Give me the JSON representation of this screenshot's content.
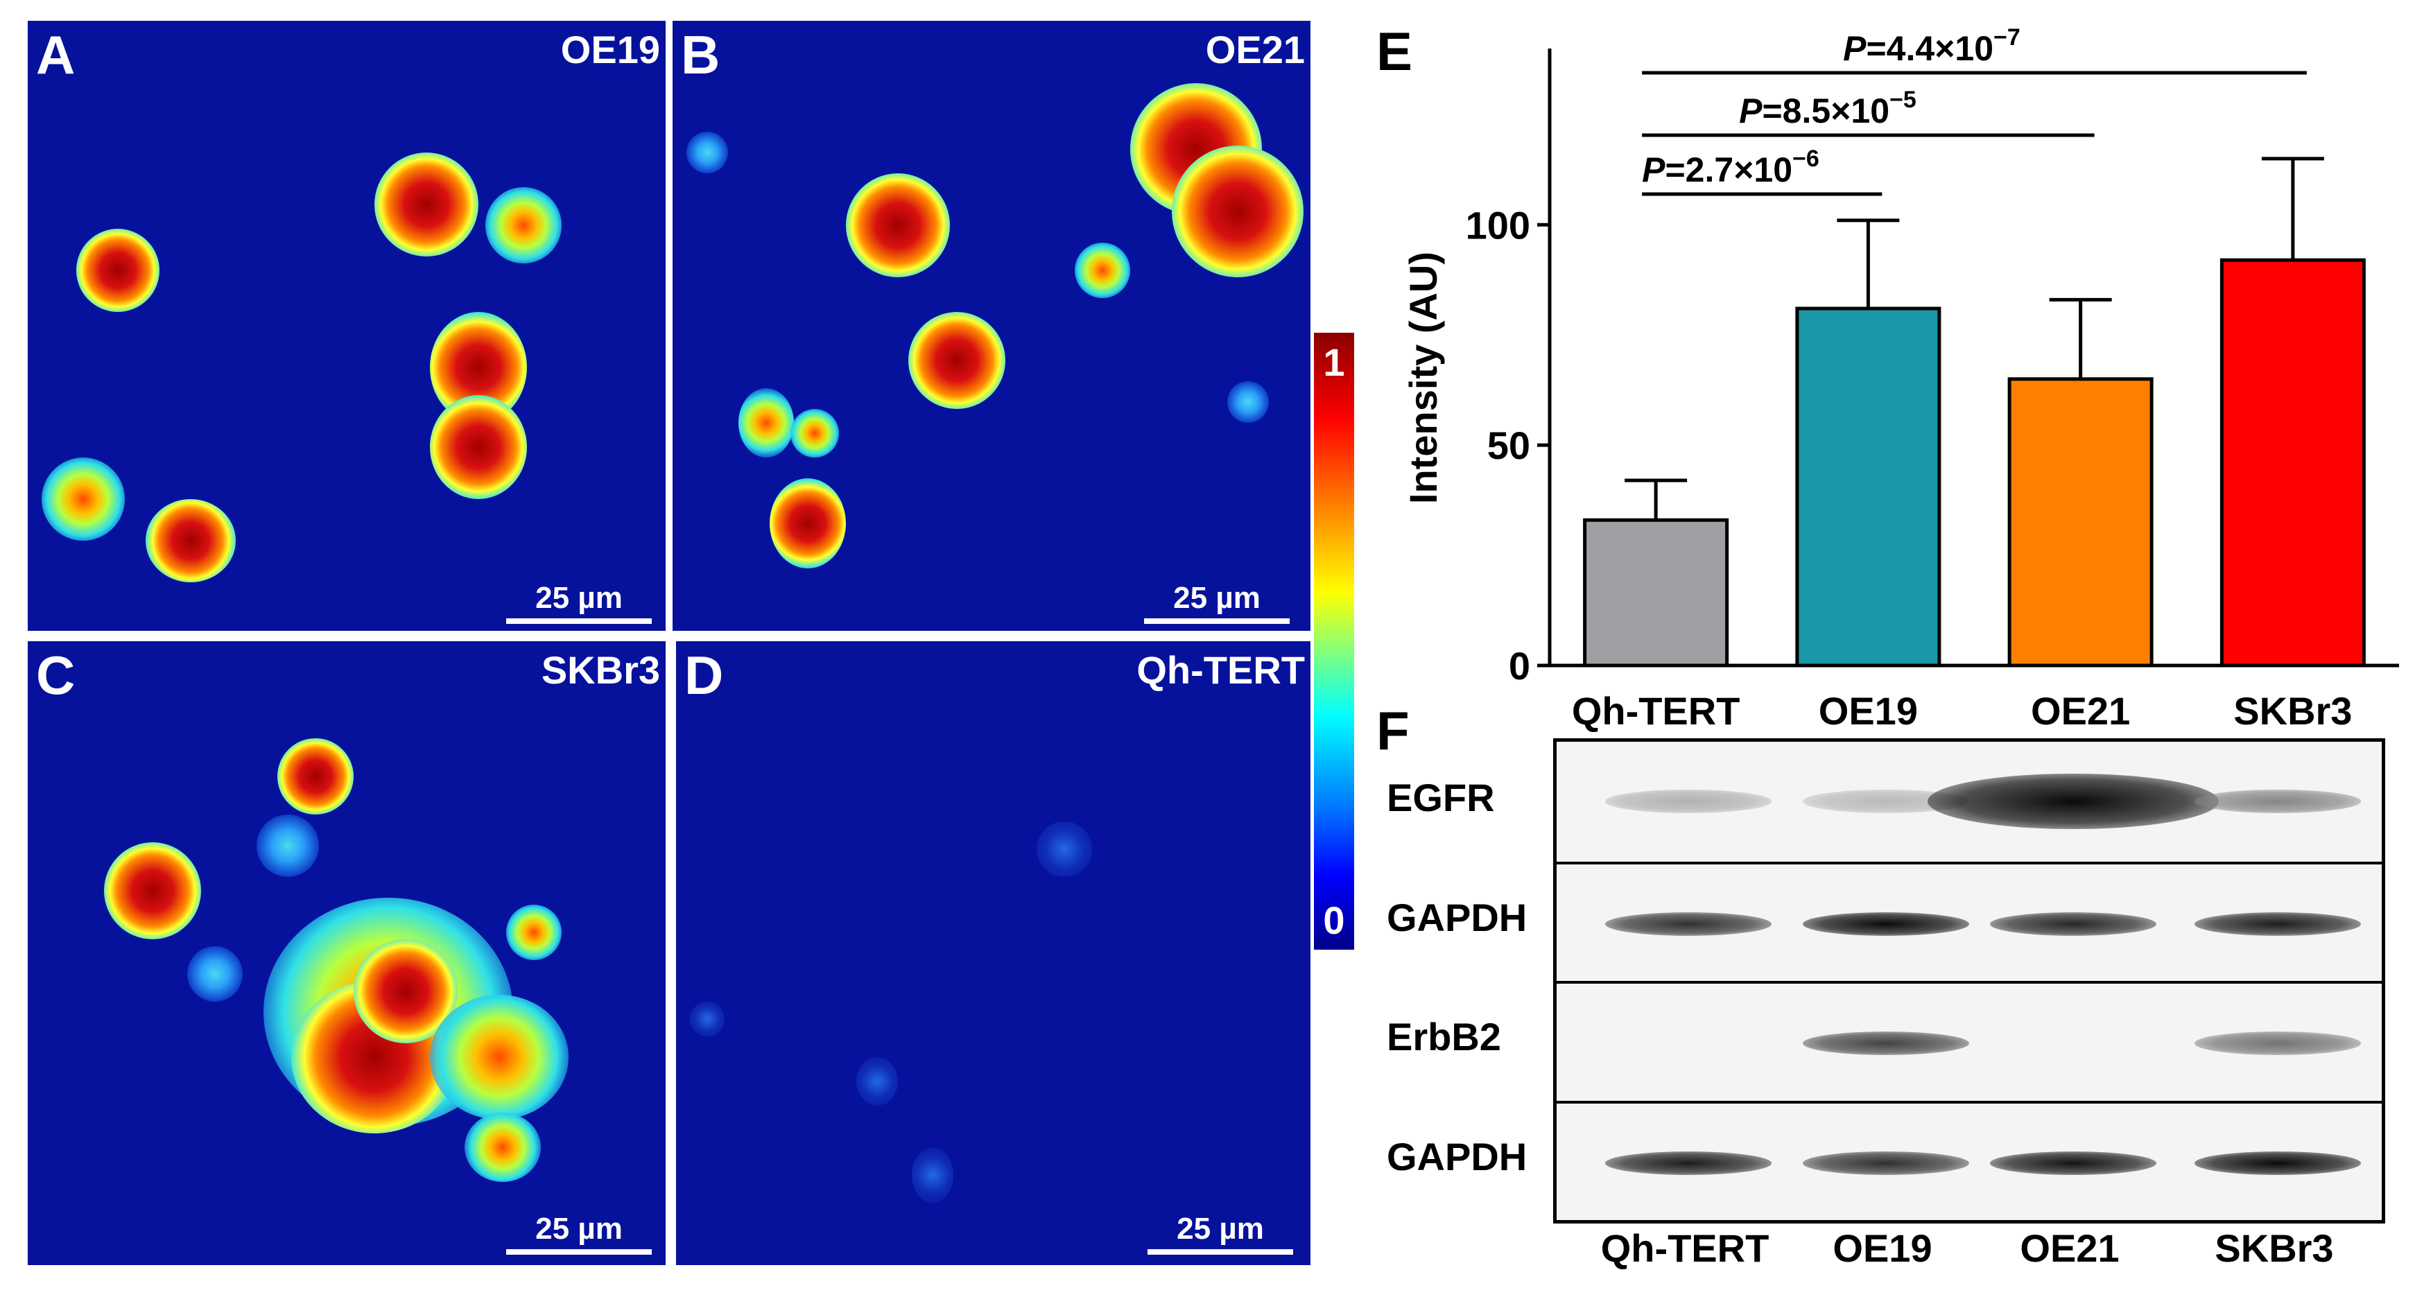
{
  "panels": [
    {
      "id": "A",
      "letter": "A",
      "cell_line": "OE19",
      "scale": "25 µm"
    },
    {
      "id": "B",
      "letter": "B",
      "cell_line": "OE21",
      "scale": "25 µm"
    },
    {
      "id": "C",
      "letter": "C",
      "cell_line": "SKBr3",
      "scale": "25 µm"
    },
    {
      "id": "D",
      "letter": "D",
      "cell_line": "Qh-TERT",
      "scale": "25 µm"
    }
  ],
  "colorbar": {
    "max_label": "1",
    "min_label": "0"
  },
  "chart_data": {
    "type": "bar",
    "panel_letter": "E",
    "categories": [
      "Qh-TERT",
      "OE19",
      "OE21",
      "SKBr3"
    ],
    "values": [
      33,
      81,
      65,
      92
    ],
    "errors": [
      9,
      20,
      18,
      23
    ],
    "colors": [
      "#a0a0a4",
      "#1a98a8",
      "#ff8000",
      "#ff0000"
    ],
    "ylabel": "Intensity (AU)",
    "yticks": [
      0,
      50,
      100
    ],
    "ylim": [
      0,
      140
    ],
    "significance": [
      {
        "from": "Qh-TERT",
        "to": "OE19",
        "label_p": "P",
        "label_rest": "=2.7×10",
        "label_exp": "−6"
      },
      {
        "from": "Qh-TERT",
        "to": "OE21",
        "label_p": "P",
        "label_rest": "=8.5×10",
        "label_exp": "−5"
      },
      {
        "from": "Qh-TERT",
        "to": "SKBr3",
        "label_p": "P",
        "label_rest": "=4.4×10",
        "label_exp": "−7"
      }
    ]
  },
  "blot": {
    "panel_letter": "F",
    "lanes": [
      "Qh-TERT",
      "OE19",
      "OE21",
      "SKBr3"
    ],
    "rows": [
      {
        "label": "EGFR",
        "intensities": [
          0.12,
          0.08,
          1.0,
          0.35
        ]
      },
      {
        "label": "GAPDH",
        "intensities": [
          0.8,
          1.0,
          0.85,
          0.9
        ]
      },
      {
        "label": "ErbB2",
        "intensities": [
          0.0,
          0.7,
          0.0,
          0.45
        ]
      },
      {
        "label": "GAPDH",
        "intensities": [
          0.9,
          0.8,
          0.95,
          1.0
        ]
      }
    ]
  }
}
